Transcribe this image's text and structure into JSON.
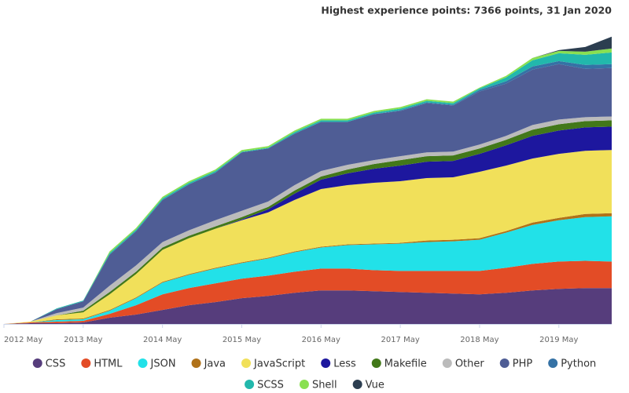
{
  "chart_data": {
    "type": "stacked_area",
    "title": "Highest experience points: 7366 points, 31 Jan 2020",
    "x": [
      "2012 May",
      "2012 Sep",
      "2013 Jan",
      "2013 May",
      "2013 Sep",
      "2014 Jan",
      "2014 May",
      "2014 Sep",
      "2015 Jan",
      "2015 May",
      "2015 Sep",
      "2016 Jan",
      "2016 May",
      "2016 Sep",
      "2017 Jan",
      "2017 May",
      "2017 Sep",
      "2018 Jan",
      "2018 May",
      "2018 Sep",
      "2019 Jan",
      "2019 May",
      "2019 Sep",
      "2020 Jan"
    ],
    "xlim": [
      "2012 May",
      "2020 Jan"
    ],
    "xticks": [
      "2012 May",
      "2013 May",
      "2014 May",
      "2015 May",
      "2016 May",
      "2017 May",
      "2018 May",
      "2019 May"
    ],
    "ylim": [
      0,
      7400
    ],
    "series": [
      {
        "name": "CSS",
        "color": "#563d7c",
        "values": [
          0,
          20,
          20,
          40,
          160,
          240,
          360,
          480,
          560,
          660,
          720,
          800,
          860,
          860,
          840,
          820,
          800,
          780,
          760,
          800,
          860,
          900,
          920,
          920
        ]
      },
      {
        "name": "HTML",
        "color": "#e34c26",
        "values": [
          0,
          20,
          40,
          40,
          100,
          240,
          400,
          440,
          480,
          500,
          520,
          540,
          560,
          560,
          540,
          540,
          560,
          580,
          600,
          640,
          680,
          700,
          700,
          680
        ]
      },
      {
        "name": "JSON",
        "color": "#22e1e8",
        "values": [
          0,
          0,
          40,
          40,
          80,
          180,
          300,
          340,
          380,
          400,
          440,
          500,
          540,
          600,
          660,
          700,
          740,
          760,
          800,
          900,
          1000,
          1060,
          1120,
          1160
        ]
      },
      {
        "name": "Java",
        "color": "#b07219",
        "values": [
          0,
          0,
          20,
          20,
          20,
          20,
          20,
          20,
          20,
          20,
          20,
          20,
          20,
          20,
          20,
          20,
          40,
          40,
          40,
          40,
          60,
          60,
          80,
          80
        ]
      },
      {
        "name": "JavaScript",
        "color": "#f1e05a",
        "values": [
          0,
          20,
          100,
          160,
          400,
          600,
          820,
          920,
          1000,
          1080,
          1160,
          1320,
          1480,
          1520,
          1560,
          1580,
          1600,
          1600,
          1700,
          1680,
          1640,
          1640,
          1620,
          1620
        ]
      },
      {
        "name": "Less",
        "color": "#1d179e",
        "values": [
          0,
          0,
          0,
          0,
          0,
          0,
          0,
          0,
          0,
          20,
          80,
          160,
          240,
          300,
          360,
          400,
          420,
          420,
          460,
          520,
          580,
          600,
          600,
          600
        ]
      },
      {
        "name": "Makefile",
        "color": "#427819",
        "values": [
          0,
          0,
          0,
          40,
          60,
          60,
          60,
          60,
          60,
          60,
          60,
          80,
          80,
          100,
          120,
          140,
          140,
          140,
          140,
          140,
          160,
          160,
          160,
          160
        ]
      },
      {
        "name": "Other",
        "color": "#bbbbbb",
        "values": [
          0,
          0,
          60,
          80,
          160,
          160,
          140,
          140,
          160,
          160,
          140,
          140,
          140,
          120,
          100,
          100,
          100,
          100,
          100,
          100,
          120,
          120,
          100,
          100
        ]
      },
      {
        "name": "PHP",
        "color": "#4f5d95",
        "values": [
          0,
          0,
          100,
          160,
          800,
          880,
          1080,
          1180,
          1220,
          1500,
          1360,
          1320,
          1260,
          1100,
          1180,
          1160,
          1260,
          1180,
          1360,
          1340,
          1420,
          1420,
          1240,
          1240
        ]
      },
      {
        "name": "Python",
        "color": "#3572a5",
        "values": [
          0,
          0,
          0,
          0,
          0,
          0,
          0,
          0,
          0,
          0,
          0,
          0,
          0,
          0,
          0,
          20,
          20,
          20,
          40,
          60,
          80,
          80,
          100,
          100
        ]
      },
      {
        "name": "SCSS",
        "color": "#22b8ac",
        "values": [
          0,
          0,
          20,
          20,
          40,
          40,
          40,
          40,
          40,
          20,
          20,
          40,
          40,
          40,
          40,
          40,
          40,
          40,
          40,
          100,
          160,
          200,
          260,
          300
        ]
      },
      {
        "name": "Shell",
        "color": "#89e051",
        "values": [
          0,
          0,
          0,
          0,
          40,
          40,
          40,
          40,
          40,
          40,
          40,
          40,
          40,
          40,
          40,
          40,
          40,
          40,
          20,
          40,
          60,
          60,
          80,
          100
        ]
      },
      {
        "name": "Vue",
        "color": "#2c3e50",
        "values": [
          0,
          0,
          0,
          0,
          0,
          0,
          0,
          0,
          0,
          0,
          0,
          0,
          0,
          0,
          0,
          0,
          0,
          0,
          0,
          0,
          0,
          20,
          120,
          306
        ]
      }
    ]
  }
}
